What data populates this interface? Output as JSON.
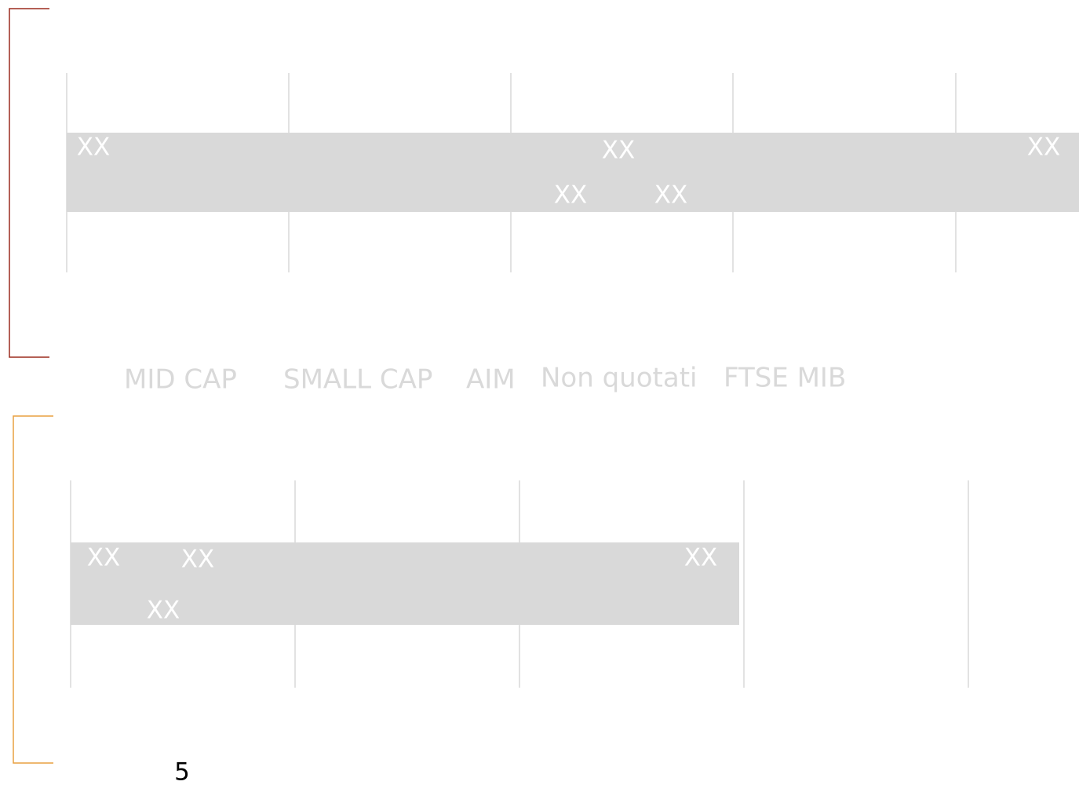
{
  "top_panel": {
    "labels": [
      "XX",
      "XX",
      "XX",
      "XX",
      "XX"
    ]
  },
  "legend": [
    "MID CAP",
    "SMALL CAP",
    "AIM",
    "Non quotati",
    "FTSE MIB"
  ],
  "bottom_panel": {
    "labels": [
      "XX",
      "XX",
      "XX",
      "XX"
    ]
  },
  "page_number": "5"
}
